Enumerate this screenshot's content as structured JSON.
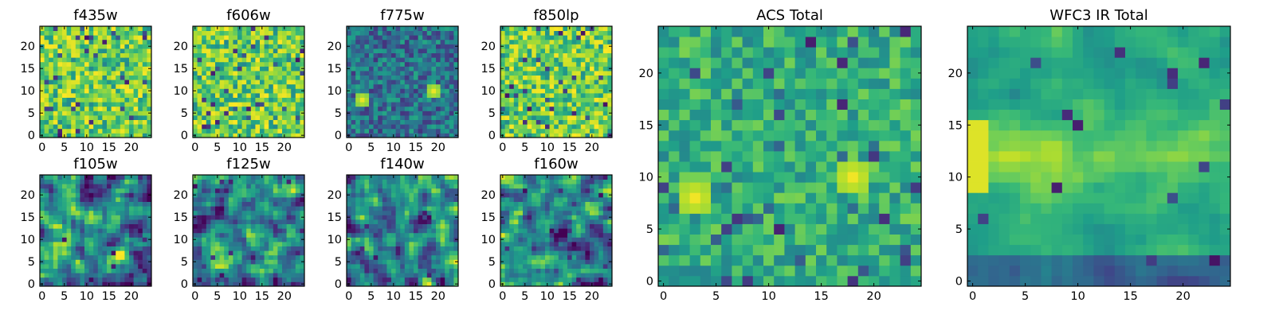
{
  "chart_data": [
    {
      "type": "heatmap",
      "title": "f435w",
      "grid": [
        25,
        25
      ],
      "seed": 11,
      "style": "noise",
      "xticks": [
        0,
        5,
        10,
        15,
        20
      ],
      "yticks": [
        0,
        5,
        10,
        15,
        20
      ]
    },
    {
      "type": "heatmap",
      "title": "f606w",
      "grid": [
        25,
        25
      ],
      "seed": 23,
      "style": "noise",
      "xticks": [
        0,
        5,
        10,
        15,
        20
      ],
      "yticks": [
        0,
        5,
        10,
        15,
        20
      ]
    },
    {
      "type": "heatmap",
      "title": "f775w",
      "grid": [
        25,
        25
      ],
      "seed": 37,
      "style": "dark",
      "blobs": [
        [
          3,
          8
        ],
        [
          19,
          10
        ]
      ],
      "xticks": [
        0,
        5,
        10,
        15,
        20
      ],
      "yticks": [
        0,
        5,
        10,
        15,
        20
      ]
    },
    {
      "type": "heatmap",
      "title": "f850lp",
      "grid": [
        25,
        25
      ],
      "seed": 41,
      "style": "noise",
      "xticks": [
        0,
        5,
        10,
        15,
        20
      ],
      "yticks": [
        0,
        5,
        10,
        15,
        20
      ]
    },
    {
      "type": "heatmap",
      "title": "f105w",
      "grid": [
        25,
        25
      ],
      "seed": 53,
      "style": "smooth",
      "xticks": [
        0,
        5,
        10,
        15,
        20
      ],
      "yticks": [
        0,
        5,
        10,
        15,
        20
      ]
    },
    {
      "type": "heatmap",
      "title": "f125w",
      "grid": [
        25,
        25
      ],
      "seed": 67,
      "style": "smooth",
      "xticks": [
        0,
        5,
        10,
        15,
        20
      ],
      "yticks": [
        0,
        5,
        10,
        15,
        20
      ]
    },
    {
      "type": "heatmap",
      "title": "f140w",
      "grid": [
        25,
        25
      ],
      "seed": 79,
      "style": "smooth",
      "xticks": [
        0,
        5,
        10,
        15,
        20
      ],
      "yticks": [
        0,
        5,
        10,
        15,
        20
      ]
    },
    {
      "type": "heatmap",
      "title": "f160w",
      "grid": [
        25,
        25
      ],
      "seed": 83,
      "style": "smooth",
      "xticks": [
        0,
        5,
        10,
        15,
        20
      ],
      "yticks": [
        0,
        5,
        10,
        15,
        20
      ]
    },
    {
      "type": "heatmap",
      "title": "ACS Total",
      "grid": [
        25,
        25
      ],
      "seed": 97,
      "style": "acs",
      "blobs": [
        [
          3,
          8
        ],
        [
          18,
          10
        ]
      ],
      "xticks": [
        0,
        5,
        10,
        15,
        20
      ],
      "yticks": [
        0,
        5,
        10,
        15,
        20
      ]
    },
    {
      "type": "heatmap",
      "title": "WFC3 IR Total",
      "grid": [
        25,
        25
      ],
      "seed": 101,
      "style": "ir",
      "xticks": [
        0,
        5,
        10,
        15,
        20
      ],
      "yticks": [
        0,
        5,
        10,
        15,
        20
      ]
    }
  ],
  "colormap": [
    "#440154",
    "#482878",
    "#3e4989",
    "#31688e",
    "#26828e",
    "#1f9e89",
    "#35b779",
    "#6ece58",
    "#b5de2b",
    "#fde725"
  ]
}
